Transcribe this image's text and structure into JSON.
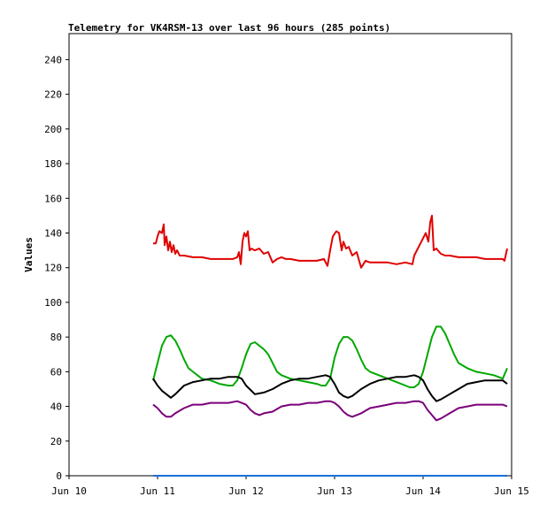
{
  "chart_data": {
    "type": "line",
    "title": "Telemetry for VK4RSM-13 over last 96 hours (285 points)",
    "ylabel": "Values",
    "xlabel": "",
    "ylim": [
      0,
      255
    ],
    "xlim": [
      10,
      15
    ],
    "x_ticks": [
      {
        "x": 10,
        "label": "Jun 10"
      },
      {
        "x": 11,
        "label": "Jun 11"
      },
      {
        "x": 12,
        "label": "Jun 12"
      },
      {
        "x": 13,
        "label": "Jun 13"
      },
      {
        "x": 14,
        "label": "Jun 14"
      },
      {
        "x": 15,
        "label": "Jun 15"
      }
    ],
    "y_ticks": [
      0,
      20,
      40,
      60,
      80,
      100,
      120,
      140,
      160,
      180,
      200,
      220,
      240
    ],
    "grid": false,
    "series": [
      {
        "color": "#e00000",
        "x": [
          10.95,
          10.98,
          11.0,
          11.02,
          11.05,
          11.07,
          11.08,
          11.1,
          11.12,
          11.14,
          11.16,
          11.18,
          11.2,
          11.22,
          11.25,
          11.3,
          11.4,
          11.5,
          11.6,
          11.7,
          11.8,
          11.85,
          11.9,
          11.92,
          11.94,
          11.96,
          11.98,
          12.0,
          12.02,
          12.04,
          12.06,
          12.1,
          12.15,
          12.2,
          12.25,
          12.3,
          12.35,
          12.4,
          12.45,
          12.5,
          12.6,
          12.7,
          12.8,
          12.88,
          12.92,
          12.95,
          12.98,
          13.02,
          13.05,
          13.08,
          13.1,
          13.13,
          13.16,
          13.2,
          13.25,
          13.3,
          13.35,
          13.4,
          13.5,
          13.6,
          13.7,
          13.8,
          13.88,
          13.9,
          13.95,
          14.0,
          14.03,
          14.06,
          14.08,
          14.1,
          14.12,
          14.15,
          14.2,
          14.25,
          14.3,
          14.4,
          14.5,
          14.6,
          14.7,
          14.8,
          14.9,
          14.92,
          14.95
        ],
        "values": [
          134,
          134,
          138,
          141,
          140,
          145,
          133,
          138,
          130,
          135,
          129,
          133,
          128,
          130,
          127,
          127,
          126,
          126,
          125,
          125,
          125,
          125,
          126,
          129,
          122,
          135,
          140,
          138,
          141,
          130,
          131,
          130,
          131,
          128,
          129,
          123,
          125,
          126,
          125,
          125,
          124,
          124,
          124,
          125,
          121,
          130,
          138,
          141,
          140,
          130,
          135,
          131,
          132,
          127,
          129,
          120,
          124,
          123,
          123,
          123,
          122,
          123,
          122,
          127,
          132,
          137,
          140,
          135,
          146,
          150,
          130,
          131,
          128,
          127,
          127,
          126,
          126,
          126,
          125,
          125,
          125,
          124,
          131
        ]
      },
      {
        "color": "#00a800",
        "x": [
          10.95,
          11.0,
          11.05,
          11.1,
          11.15,
          11.2,
          11.25,
          11.3,
          11.35,
          11.4,
          11.45,
          11.5,
          11.6,
          11.7,
          11.8,
          11.85,
          11.9,
          11.95,
          12.0,
          12.05,
          12.1,
          12.15,
          12.2,
          12.25,
          12.3,
          12.35,
          12.4,
          12.5,
          12.6,
          12.7,
          12.8,
          12.85,
          12.9,
          12.95,
          13.0,
          13.05,
          13.1,
          13.15,
          13.2,
          13.25,
          13.3,
          13.35,
          13.4,
          13.5,
          13.6,
          13.7,
          13.8,
          13.85,
          13.9,
          13.95,
          14.0,
          14.05,
          14.1,
          14.15,
          14.2,
          14.25,
          14.3,
          14.35,
          14.4,
          14.5,
          14.6,
          14.7,
          14.8,
          14.9,
          14.95
        ],
        "values": [
          55,
          65,
          75,
          80,
          81,
          78,
          73,
          67,
          62,
          60,
          58,
          56,
          55,
          53,
          52,
          52,
          55,
          62,
          70,
          76,
          77,
          75,
          73,
          70,
          65,
          60,
          58,
          56,
          55,
          54,
          53,
          52,
          52,
          56,
          68,
          76,
          80,
          80,
          78,
          73,
          67,
          62,
          60,
          58,
          56,
          54,
          52,
          51,
          51,
          53,
          60,
          70,
          80,
          86,
          86,
          82,
          76,
          70,
          65,
          62,
          60,
          59,
          58,
          56,
          62
        ]
      },
      {
        "color": "#000000",
        "x": [
          10.95,
          11.0,
          11.05,
          11.1,
          11.15,
          11.2,
          11.3,
          11.4,
          11.5,
          11.6,
          11.7,
          11.8,
          11.9,
          11.95,
          12.0,
          12.1,
          12.2,
          12.3,
          12.4,
          12.5,
          12.6,
          12.7,
          12.8,
          12.9,
          12.95,
          13.0,
          13.05,
          13.1,
          13.15,
          13.2,
          13.3,
          13.4,
          13.5,
          13.6,
          13.7,
          13.8,
          13.9,
          13.95,
          14.0,
          14.05,
          14.1,
          14.15,
          14.2,
          14.3,
          14.4,
          14.5,
          14.6,
          14.7,
          14.8,
          14.9,
          14.95
        ],
        "values": [
          56,
          52,
          49,
          47,
          45,
          47,
          52,
          54,
          55,
          56,
          56,
          57,
          57,
          56,
          52,
          47,
          48,
          50,
          53,
          55,
          56,
          56,
          57,
          58,
          57,
          53,
          48,
          46,
          45,
          46,
          50,
          53,
          55,
          56,
          57,
          57,
          58,
          57,
          55,
          50,
          46,
          43,
          44,
          47,
          50,
          53,
          54,
          55,
          55,
          55,
          53
        ]
      },
      {
        "color": "#7a007a",
        "x": [
          10.95,
          11.0,
          11.05,
          11.1,
          11.15,
          11.2,
          11.3,
          11.4,
          11.5,
          11.6,
          11.7,
          11.8,
          11.9,
          11.95,
          12.0,
          12.05,
          12.1,
          12.15,
          12.2,
          12.3,
          12.4,
          12.5,
          12.6,
          12.7,
          12.8,
          12.9,
          12.95,
          13.0,
          13.05,
          13.1,
          13.15,
          13.2,
          13.3,
          13.4,
          13.5,
          13.6,
          13.7,
          13.8,
          13.9,
          13.95,
          14.0,
          14.05,
          14.1,
          14.15,
          14.2,
          14.3,
          14.4,
          14.5,
          14.6,
          14.7,
          14.8,
          14.9,
          14.95
        ],
        "values": [
          41,
          39,
          36,
          34,
          34,
          36,
          39,
          41,
          41,
          42,
          42,
          42,
          43,
          42,
          41,
          38,
          36,
          35,
          36,
          37,
          40,
          41,
          41,
          42,
          42,
          43,
          43,
          42,
          40,
          37,
          35,
          34,
          36,
          39,
          40,
          41,
          42,
          42,
          43,
          43,
          42,
          38,
          35,
          32,
          33,
          36,
          39,
          40,
          41,
          41,
          41,
          41,
          40
        ]
      },
      {
        "color": "#1a6ed8",
        "x": [
          10.95,
          14.95
        ],
        "values": [
          0,
          0
        ]
      }
    ]
  }
}
